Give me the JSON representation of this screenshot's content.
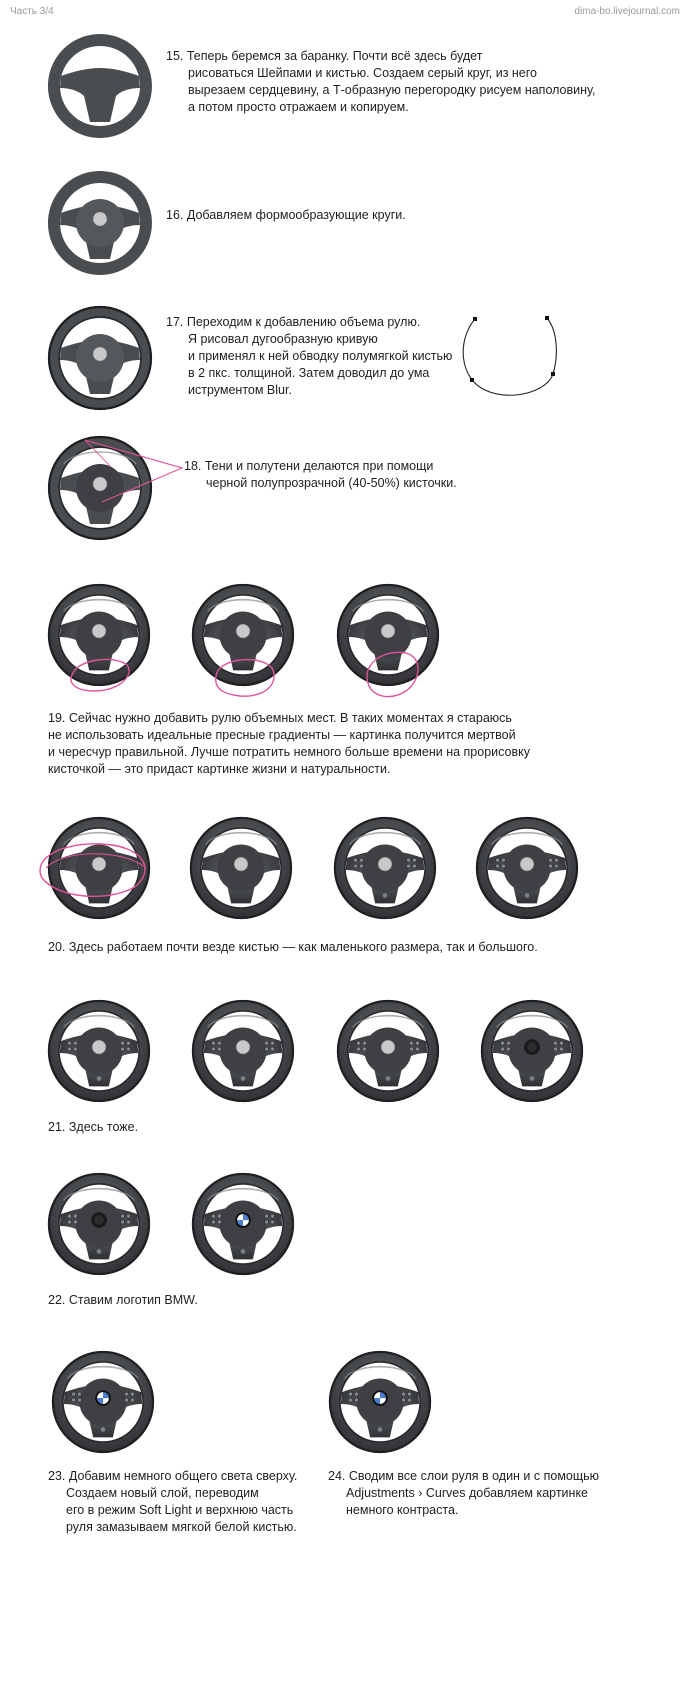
{
  "header": {
    "left": "Часть 3/4",
    "right": "dima-bo.livejournal.com"
  },
  "steps": {
    "s15": [
      "15. Теперь беремся за баранку. Почти всё здесь будет",
      "рисоваться Шейпами и кистью. Создаем серый круг, из него",
      "вырезаем сердцевину, а Т-образную перегородку рисуем наполовину,",
      "а потом просто отражаем и копируем."
    ],
    "s16": [
      "16. Добавляем формообразующие круги."
    ],
    "s17": [
      "17. Переходим к добавлению объема рулю.",
      "Я рисовал дугообразную кривую",
      "и применял к ней обводку полумягкой кистью",
      "в 2 пкс. толщиной. Затем доводил до ума",
      "иструментом Blur."
    ],
    "s18": [
      "18. Тени и полутени делаются при помощи",
      "черной полупрозрачной (40-50%) кисточки."
    ],
    "s19": [
      "19. Сейчас нужно добавить рулю объемных мест. В таких моментах я стараюсь",
      "не использовать идеальные пресные градиенты — картинка получится мертвой",
      "и чересчур правильной. Лучше потратить немного больше времени на прорисовку",
      "кисточкой — это придаст картинке жизни и натуральности."
    ],
    "s20": [
      "20. Здесь работаем почти везде кистью — как маленького размера, так и большого."
    ],
    "s21": [
      "21. Здесь тоже."
    ],
    "s22": [
      "22. Ставим логотип BMW."
    ],
    "s23": [
      "23. Добавим немного общего света сверху.",
      "Создаем новый слой, переводим",
      "его в режим Soft Light и верхнюю часть",
      "руля замазываем мягкой белой кистью."
    ],
    "s24": [
      "24. Сводим все слои руля в один и с помощью",
      "Adjustments › Curves добавляем картинке",
      "немного контраста."
    ]
  },
  "colors": {
    "wheel": "#4a4d50",
    "wheel_dark": "#3b3d40",
    "center": "#c9c9c9",
    "annotation": "#e0529a"
  },
  "wheels": [
    {
      "id": "w15",
      "stage": 0
    },
    {
      "id": "w16",
      "stage": 1
    },
    {
      "id": "w17",
      "stage": 2
    },
    {
      "id": "w18",
      "stage": 3
    },
    {
      "id": "w19a",
      "stage": 4
    },
    {
      "id": "w19b",
      "stage": 4
    },
    {
      "id": "w19c",
      "stage": 4
    },
    {
      "id": "w20a",
      "stage": 4
    },
    {
      "id": "w20b",
      "stage": 4
    },
    {
      "id": "w20c",
      "stage": 5
    },
    {
      "id": "w20d",
      "stage": 5
    },
    {
      "id": "w21a",
      "stage": 5
    },
    {
      "id": "w21b",
      "stage": 5
    },
    {
      "id": "w21c",
      "stage": 5
    },
    {
      "id": "w21d",
      "stage": 6
    },
    {
      "id": "w22a",
      "stage": 6
    },
    {
      "id": "w22b",
      "stage": 7
    },
    {
      "id": "w23",
      "stage": 7
    },
    {
      "id": "w24",
      "stage": 7
    }
  ]
}
